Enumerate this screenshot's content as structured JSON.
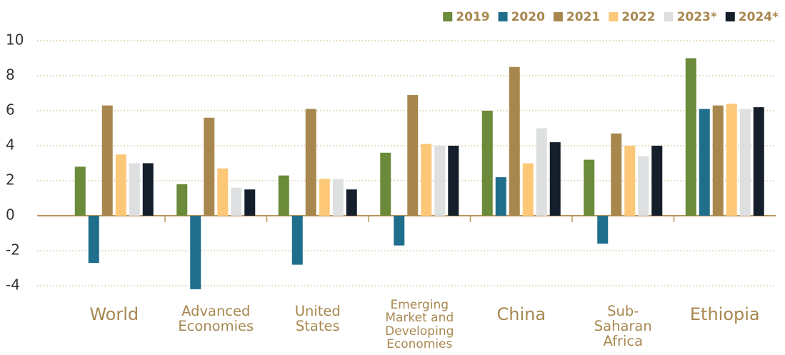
{
  "chart_data": {
    "type": "bar",
    "categories": [
      "World",
      "Advanced Economies",
      "United States",
      "Emerging Market and Developing Economies",
      "China",
      "Sub-Saharan Africa",
      "Ethiopia"
    ],
    "series": [
      {
        "name": "2019",
        "color": "#6b8a3a",
        "values": [
          2.8,
          1.8,
          2.3,
          3.6,
          6.0,
          3.2,
          9.0
        ]
      },
      {
        "name": "2020",
        "color": "#1f6e8c",
        "values": [
          -2.7,
          -4.2,
          -2.8,
          -1.7,
          2.2,
          -1.6,
          6.1
        ]
      },
      {
        "name": "2021",
        "color": "#a8874f",
        "values": [
          6.3,
          5.6,
          6.1,
          6.9,
          8.5,
          4.7,
          6.3
        ]
      },
      {
        "name": "2022",
        "color": "#fcc878",
        "values": [
          3.5,
          2.7,
          2.1,
          4.1,
          3.0,
          4.0,
          6.4
        ]
      },
      {
        "name": "2023*",
        "color": "#dedfe0",
        "values": [
          3.0,
          1.6,
          2.1,
          4.0,
          5.0,
          3.4,
          6.1
        ]
      },
      {
        "name": "2024*",
        "color": "#151e2b",
        "values": [
          3.0,
          1.5,
          1.5,
          4.0,
          4.2,
          4.0,
          6.2
        ]
      }
    ],
    "ylim": [
      -4,
      10
    ],
    "yticks": [
      -4,
      -2,
      0,
      2,
      4,
      6,
      8,
      10
    ],
    "grid": true,
    "legend": "top-right"
  }
}
